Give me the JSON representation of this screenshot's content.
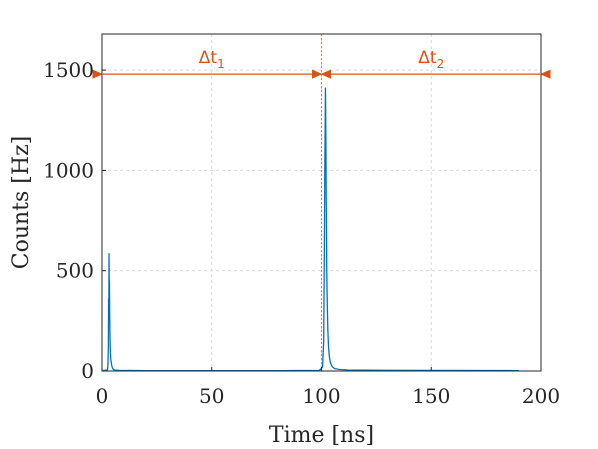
{
  "chart_data": {
    "type": "line",
    "xlabel": "Time [ns]",
    "ylabel": "Counts [Hz]",
    "xlim": [
      0,
      200
    ],
    "ylim": [
      0,
      1680
    ],
    "xticks": [
      0,
      50,
      100,
      150,
      200
    ],
    "yticks": [
      0,
      500,
      1000,
      1500
    ],
    "grid": true,
    "series": [
      {
        "color": "#0072BD",
        "x": [
          0,
          2.5,
          2.7,
          2.9,
          3.0,
          3.1,
          3.2,
          3.3,
          3.4,
          3.5,
          3.6,
          3.7,
          3.8,
          3.9,
          4.0,
          4.2,
          4.4,
          4.6,
          4.8,
          5.0,
          5.5,
          6,
          8,
          20,
          50,
          80,
          99,
          100.5,
          101.0,
          101.3,
          101.5,
          101.7,
          101.8,
          101.9,
          102.0,
          102.1,
          102.2,
          102.3,
          102.4,
          102.5,
          102.7,
          102.9,
          103.2,
          103.6,
          104,
          104.5,
          105,
          106,
          108,
          112,
          120,
          150,
          190
        ],
        "y": [
          2,
          5,
          30,
          120,
          360,
          250,
          585,
          420,
          450,
          300,
          200,
          140,
          100,
          80,
          60,
          45,
          30,
          20,
          15,
          10,
          6,
          4,
          3,
          2,
          2,
          2,
          3,
          20,
          150,
          600,
          1000,
          1250,
          1410,
          1300,
          1150,
          950,
          800,
          650,
          500,
          420,
          300,
          200,
          120,
          70,
          45,
          30,
          20,
          12,
          8,
          5,
          4,
          3,
          2
        ]
      }
    ],
    "annotations": [
      {
        "base": "Δt",
        "sub": "1",
        "color": "#D95319",
        "x_start": 0,
        "x_end": 100,
        "y": 1480
      },
      {
        "base": "Δt",
        "sub": "2",
        "color": "#D95319",
        "x_start": 100,
        "x_end": 200,
        "y": 1480
      }
    ],
    "divider": {
      "x": 100,
      "color": "#FF6E6E"
    }
  }
}
